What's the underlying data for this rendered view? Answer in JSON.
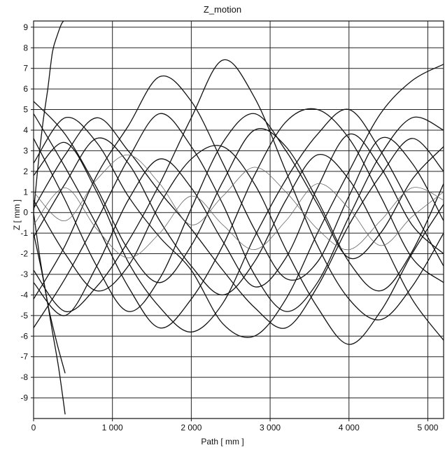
{
  "chart_data": {
    "type": "line",
    "title": "Z_motion",
    "xlabel": "Path [ mm ]",
    "ylabel": "Z [ mm ]",
    "xlim": [
      0,
      5200
    ],
    "ylim": [
      -10,
      9.3
    ],
    "grid": true,
    "x_ticks": [
      0,
      1000,
      2000,
      3000,
      4000,
      5000
    ],
    "x_tick_labels": [
      "0",
      "1 000",
      "2 000",
      "3 000",
      "4 000",
      "5 000"
    ],
    "y_ticks": [
      9,
      8,
      7,
      6,
      5,
      4,
      3,
      2,
      1,
      0,
      -1,
      -2,
      -3,
      -4,
      -5,
      -6,
      -7,
      -8,
      -9
    ],
    "y_tick_labels": [
      "9",
      "8",
      "7",
      "6",
      "5",
      "4",
      "3",
      "2",
      "1",
      "0",
      "-1",
      "-2",
      "-3",
      "-4",
      "-5",
      "-6",
      "-7",
      "-8",
      "-9"
    ],
    "series": [
      {
        "x": [
          0,
          400,
          800,
          1200,
          1600,
          2000,
          2400,
          2800,
          3200,
          3600,
          4000,
          4400,
          4800,
          5200
        ],
        "y": [
          5.4,
          3.8,
          1.2,
          -1.8,
          -3.4,
          -1.6,
          1.5,
          4.0,
          3.2,
          0.6,
          -2.4,
          -3.8,
          -1.9,
          1.4
        ]
      },
      {
        "x": [
          0,
          400,
          800,
          1200,
          1600,
          2000,
          2400,
          2800,
          3200,
          3600,
          4000,
          4400,
          4800,
          5200
        ],
        "y": [
          -5.6,
          -3.2,
          -0.4,
          2.6,
          4.8,
          3.2,
          0.4,
          -3.0,
          -4.8,
          -3.4,
          -0.2,
          2.8,
          4.6,
          4.0
        ]
      },
      {
        "x": [
          0,
          400,
          800,
          1200,
          1600,
          2000,
          2400,
          2800,
          3200,
          3600,
          4000,
          4400,
          4800,
          5200
        ],
        "y": [
          2.4,
          4.6,
          3.4,
          0.8,
          -1.2,
          -2.8,
          -5.4,
          -6.0,
          -4.2,
          -1.0,
          2.0,
          4.8,
          6.4,
          7.2
        ]
      },
      {
        "x": [
          0,
          400,
          800,
          1200,
          1600,
          2000,
          2400,
          2800,
          3200,
          3600,
          4000,
          4400,
          4800,
          5200
        ],
        "y": [
          -2.8,
          -4.8,
          -3.6,
          -1.4,
          1.4,
          4.6,
          7.4,
          5.6,
          2.0,
          -1.6,
          -4.2,
          -5.2,
          -3.6,
          -1.0
        ]
      },
      {
        "x": [
          0,
          400,
          800,
          1200,
          1600,
          2000,
          2400,
          2800,
          3200,
          3600,
          4000,
          4400,
          4800,
          5200
        ],
        "y": [
          0.6,
          -2.0,
          -3.8,
          -2.6,
          0.4,
          2.6,
          3.2,
          1.4,
          -1.8,
          -4.6,
          -6.4,
          -4.8,
          -2.0,
          0.4
        ]
      },
      {
        "x": [
          0,
          400,
          800,
          1200,
          1600,
          2000,
          2400,
          2800,
          3200,
          3600,
          4000,
          4400,
          4800,
          5200
        ],
        "y": [
          4.8,
          2.2,
          -0.6,
          -3.6,
          -5.6,
          -4.2,
          -1.6,
          1.8,
          4.4,
          5.0,
          3.6,
          0.8,
          -2.2,
          -3.4
        ]
      },
      {
        "x": [
          0,
          400,
          800,
          1200,
          1600,
          2000,
          2400,
          2800,
          3200,
          3600,
          4000,
          4400,
          4800,
          5200
        ],
        "y": [
          -4.2,
          -1.6,
          1.8,
          4.2,
          6.6,
          5.4,
          2.4,
          -0.8,
          -3.2,
          -2.4,
          0.8,
          3.6,
          2.4,
          -0.4
        ]
      },
      {
        "x": [
          0,
          400,
          800,
          1200,
          1600,
          2000,
          2400,
          2800,
          3200,
          3600,
          4000,
          4400,
          4800,
          5200
        ],
        "y": [
          1.8,
          3.4,
          1.0,
          -2.4,
          -4.6,
          -5.8,
          -4.4,
          -1.2,
          1.6,
          3.8,
          5.0,
          3.0,
          0.2,
          -2.6
        ]
      },
      {
        "x": [
          0,
          400,
          800,
          1200,
          1600,
          2000,
          2400,
          2800,
          3200,
          3600,
          4000,
          4400,
          4800,
          5200
        ],
        "y": [
          -1.2,
          1.4,
          3.6,
          2.4,
          -0.4,
          -2.6,
          -4.0,
          -2.4,
          0.6,
          2.8,
          1.6,
          -1.2,
          -4.2,
          -6.2
        ]
      },
      {
        "x": [
          0,
          400,
          800,
          1200,
          1600,
          2000,
          2400,
          2800,
          3200,
          3600,
          4000,
          4400,
          4800,
          5200
        ],
        "y": [
          3.6,
          0.6,
          -2.6,
          -4.8,
          -3.2,
          0.2,
          3.4,
          4.8,
          3.0,
          0.4,
          -2.2,
          -1.0,
          1.6,
          3.2
        ]
      },
      {
        "x": [
          0,
          400,
          800,
          1200,
          1600,
          2000,
          2400,
          2800,
          3200,
          3600,
          4000,
          4400,
          4800,
          5200
        ],
        "y": [
          -3.4,
          -5.0,
          -2.6,
          0.6,
          2.6,
          1.2,
          -1.4,
          -3.6,
          -2.2,
          1.2,
          3.8,
          2.2,
          -0.6,
          -2.0
        ]
      },
      {
        "x": [
          0,
          400,
          800,
          1200,
          1600,
          2000,
          2400,
          2800,
          3200,
          3600,
          4000,
          4400,
          4800,
          5200
        ],
        "y": [
          0.2,
          2.8,
          4.6,
          3.0,
          1.0,
          -0.8,
          -2.8,
          -4.6,
          -5.6,
          -3.6,
          -0.6,
          1.8,
          3.6,
          2.0
        ]
      },
      {
        "x": [
          0,
          60,
          120,
          180,
          240,
          300,
          360,
          420
        ],
        "y": [
          0.0,
          2.4,
          4.4,
          6.0,
          7.8,
          8.6,
          9.2,
          9.4
        ]
      },
      {
        "x": [
          0,
          80,
          160,
          240,
          320,
          400
        ],
        "y": [
          0.0,
          -2.2,
          -4.0,
          -5.8,
          -7.6,
          -9.8
        ]
      },
      {
        "x": [
          0,
          100,
          200,
          300,
          400
        ],
        "y": [
          -1.0,
          -2.8,
          -4.8,
          -6.4,
          -7.8
        ]
      },
      {
        "x": [
          0,
          400,
          800,
          1200,
          1600,
          2000,
          2400,
          2800,
          3200,
          3600,
          4000,
          4400,
          4800,
          5200
        ],
        "y": [
          1.0,
          -0.4,
          1.6,
          2.8,
          1.4,
          -0.6,
          0.8,
          2.2,
          1.0,
          -0.8,
          -1.8,
          -0.4,
          1.2,
          0.6
        ]
      },
      {
        "x": [
          0,
          400,
          800,
          1200,
          1600,
          2000,
          2400,
          2800,
          3200,
          3600,
          4000,
          4400,
          4800,
          5200
        ],
        "y": [
          -0.6,
          1.2,
          -0.8,
          -2.2,
          -1.0,
          0.8,
          -0.6,
          -1.8,
          -0.4,
          1.4,
          0.2,
          -1.6,
          -0.2,
          1.0
        ]
      }
    ]
  }
}
